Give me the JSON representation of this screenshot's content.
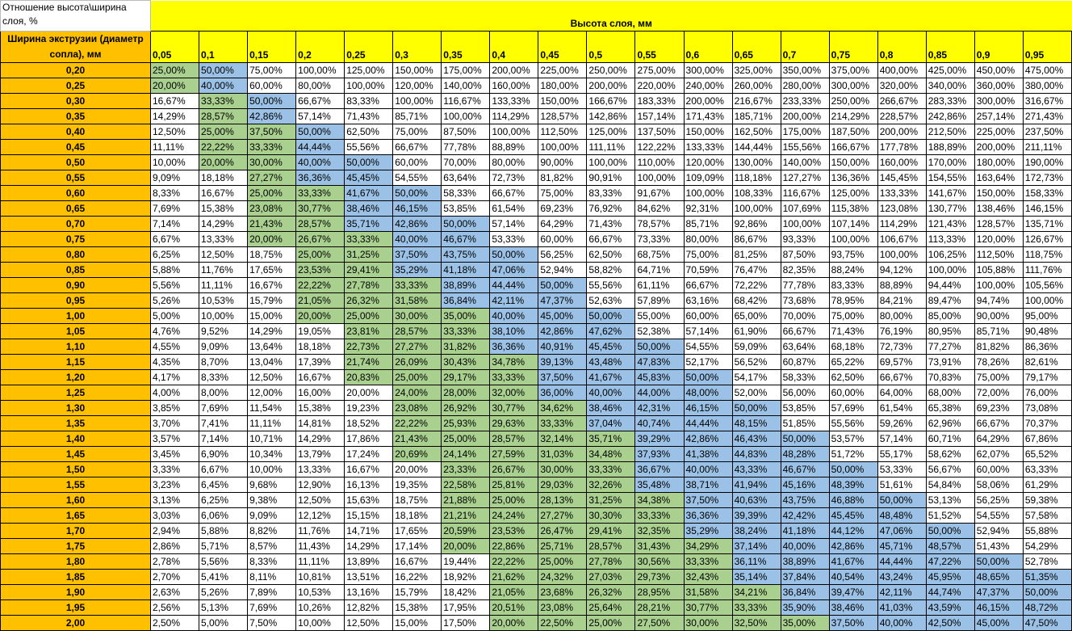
{
  "corner_label": "Отношение высота\\ширина слоя, %",
  "column_group_title": "Высота слоя, мм",
  "row_group_title": "Ширина экструзии (диаметр сопла), мм",
  "colors": {
    "row_header": "#FFC000",
    "column_header": "#FFFF00",
    "green": "#A9D08E",
    "blue": "#9BC2E6"
  },
  "heights": [
    "0,05",
    "0,1",
    "0,15",
    "0,2",
    "0,25",
    "0,3",
    "0,35",
    "0,4",
    "0,45",
    "0,5",
    "0,55",
    "0,6",
    "0,65",
    "0,7",
    "0,75",
    "0,8",
    "0,85",
    "0,9",
    "0,95"
  ],
  "rows": [
    {
      "width": "0,20",
      "green": [
        0,
        0
      ],
      "blue": [
        1,
        1
      ],
      "values": [
        "25,00%",
        "50,00%",
        "75,00%",
        "100,00%",
        "125,00%",
        "150,00%",
        "175,00%",
        "200,00%",
        "225,00%",
        "250,00%",
        "275,00%",
        "300,00%",
        "325,00%",
        "350,00%",
        "375,00%",
        "400,00%",
        "425,00%",
        "450,00%",
        "475,00%"
      ]
    },
    {
      "width": "0,25",
      "green": [
        0,
        0
      ],
      "blue": [
        1,
        1
      ],
      "values": [
        "20,00%",
        "40,00%",
        "60,00%",
        "80,00%",
        "100,00%",
        "120,00%",
        "140,00%",
        "160,00%",
        "180,00%",
        "200,00%",
        "220,00%",
        "240,00%",
        "260,00%",
        "280,00%",
        "300,00%",
        "320,00%",
        "340,00%",
        "360,00%",
        "380,00%"
      ]
    },
    {
      "width": "0,30",
      "green": [
        1,
        1
      ],
      "blue": [
        2,
        2
      ],
      "values": [
        "16,67%",
        "33,33%",
        "50,00%",
        "66,67%",
        "83,33%",
        "100,00%",
        "116,67%",
        "133,33%",
        "150,00%",
        "166,67%",
        "183,33%",
        "200,00%",
        "216,67%",
        "233,33%",
        "250,00%",
        "266,67%",
        "283,33%",
        "300,00%",
        "316,67%"
      ]
    },
    {
      "width": "0,35",
      "green": [
        1,
        1
      ],
      "blue": [
        2,
        2
      ],
      "values": [
        "14,29%",
        "28,57%",
        "42,86%",
        "57,14%",
        "71,43%",
        "85,71%",
        "100,00%",
        "114,29%",
        "128,57%",
        "142,86%",
        "157,14%",
        "171,43%",
        "185,71%",
        "200,00%",
        "214,29%",
        "228,57%",
        "242,86%",
        "257,14%",
        "271,43%"
      ]
    },
    {
      "width": "0,40",
      "green": [
        1,
        2
      ],
      "blue": [
        3,
        3
      ],
      "values": [
        "12,50%",
        "25,00%",
        "37,50%",
        "50,00%",
        "62,50%",
        "75,00%",
        "87,50%",
        "100,00%",
        "112,50%",
        "125,00%",
        "137,50%",
        "150,00%",
        "162,50%",
        "175,00%",
        "187,50%",
        "200,00%",
        "212,50%",
        "225,00%",
        "237,50%"
      ]
    },
    {
      "width": "0,45",
      "green": [
        1,
        2
      ],
      "blue": [
        3,
        3
      ],
      "values": [
        "11,11%",
        "22,22%",
        "33,33%",
        "44,44%",
        "55,56%",
        "66,67%",
        "77,78%",
        "88,89%",
        "100,00%",
        "111,11%",
        "122,22%",
        "133,33%",
        "144,44%",
        "155,56%",
        "166,67%",
        "177,78%",
        "188,89%",
        "200,00%",
        "211,11%"
      ]
    },
    {
      "width": "0,50",
      "green": [
        1,
        2
      ],
      "blue": [
        3,
        4
      ],
      "values": [
        "10,00%",
        "20,00%",
        "30,00%",
        "40,00%",
        "50,00%",
        "60,00%",
        "70,00%",
        "80,00%",
        "90,00%",
        "100,00%",
        "110,00%",
        "120,00%",
        "130,00%",
        "140,00%",
        "150,00%",
        "160,00%",
        "170,00%",
        "180,00%",
        "190,00%"
      ]
    },
    {
      "width": "0,55",
      "green": [
        2,
        2
      ],
      "blue": [
        3,
        4
      ],
      "values": [
        "9,09%",
        "18,18%",
        "27,27%",
        "36,36%",
        "45,45%",
        "54,55%",
        "63,64%",
        "72,73%",
        "81,82%",
        "90,91%",
        "100,00%",
        "109,09%",
        "118,18%",
        "127,27%",
        "136,36%",
        "145,45%",
        "154,55%",
        "163,64%",
        "172,73%"
      ]
    },
    {
      "width": "0,60",
      "green": [
        2,
        3
      ],
      "blue": [
        4,
        5
      ],
      "values": [
        "8,33%",
        "16,67%",
        "25,00%",
        "33,33%",
        "41,67%",
        "50,00%",
        "58,33%",
        "66,67%",
        "75,00%",
        "83,33%",
        "91,67%",
        "100,00%",
        "108,33%",
        "116,67%",
        "125,00%",
        "133,33%",
        "141,67%",
        "150,00%",
        "158,33%"
      ]
    },
    {
      "width": "0,65",
      "green": [
        2,
        3
      ],
      "blue": [
        4,
        5
      ],
      "values": [
        "7,69%",
        "15,38%",
        "23,08%",
        "30,77%",
        "38,46%",
        "46,15%",
        "53,85%",
        "61,54%",
        "69,23%",
        "76,92%",
        "84,62%",
        "92,31%",
        "100,00%",
        "107,69%",
        "115,38%",
        "123,08%",
        "130,77%",
        "138,46%",
        "146,15%"
      ]
    },
    {
      "width": "0,70",
      "green": [
        2,
        3
      ],
      "blue": [
        4,
        6
      ],
      "values": [
        "7,14%",
        "14,29%",
        "21,43%",
        "28,57%",
        "35,71%",
        "42,86%",
        "50,00%",
        "57,14%",
        "64,29%",
        "71,43%",
        "78,57%",
        "85,71%",
        "92,86%",
        "100,00%",
        "107,14%",
        "114,29%",
        "121,43%",
        "128,57%",
        "135,71%"
      ]
    },
    {
      "width": "0,75",
      "green": [
        2,
        4
      ],
      "blue": [
        5,
        6
      ],
      "values": [
        "6,67%",
        "13,33%",
        "20,00%",
        "26,67%",
        "33,33%",
        "40,00%",
        "46,67%",
        "53,33%",
        "60,00%",
        "66,67%",
        "73,33%",
        "80,00%",
        "86,67%",
        "93,33%",
        "100,00%",
        "106,67%",
        "113,33%",
        "120,00%",
        "126,67%"
      ]
    },
    {
      "width": "0,80",
      "green": [
        3,
        4
      ],
      "blue": [
        5,
        7
      ],
      "values": [
        "6,25%",
        "12,50%",
        "18,75%",
        "25,00%",
        "31,25%",
        "37,50%",
        "43,75%",
        "50,00%",
        "56,25%",
        "62,50%",
        "68,75%",
        "75,00%",
        "81,25%",
        "87,50%",
        "93,75%",
        "100,00%",
        "106,25%",
        "112,50%",
        "118,75%"
      ]
    },
    {
      "width": "0,85",
      "green": [
        3,
        4
      ],
      "blue": [
        5,
        7
      ],
      "values": [
        "5,88%",
        "11,76%",
        "17,65%",
        "23,53%",
        "29,41%",
        "35,29%",
        "41,18%",
        "47,06%",
        "52,94%",
        "58,82%",
        "64,71%",
        "70,59%",
        "76,47%",
        "82,35%",
        "88,24%",
        "94,12%",
        "100,00%",
        "105,88%",
        "111,76%"
      ]
    },
    {
      "width": "0,90",
      "green": [
        3,
        5
      ],
      "blue": [
        6,
        8
      ],
      "values": [
        "5,56%",
        "11,11%",
        "16,67%",
        "22,22%",
        "27,78%",
        "33,33%",
        "38,89%",
        "44,44%",
        "50,00%",
        "55,56%",
        "61,11%",
        "66,67%",
        "72,22%",
        "77,78%",
        "83,33%",
        "88,89%",
        "94,44%",
        "100,00%",
        "105,56%"
      ]
    },
    {
      "width": "0,95",
      "green": [
        3,
        5
      ],
      "blue": [
        6,
        8
      ],
      "values": [
        "5,26%",
        "10,53%",
        "15,79%",
        "21,05%",
        "26,32%",
        "31,58%",
        "36,84%",
        "42,11%",
        "47,37%",
        "52,63%",
        "57,89%",
        "63,16%",
        "68,42%",
        "73,68%",
        "78,95%",
        "84,21%",
        "89,47%",
        "94,74%",
        "100,00%"
      ]
    },
    {
      "width": "1,00",
      "green": [
        3,
        6
      ],
      "blue": [
        7,
        9
      ],
      "values": [
        "5,00%",
        "10,00%",
        "15,00%",
        "20,00%",
        "25,00%",
        "30,00%",
        "35,00%",
        "40,00%",
        "45,00%",
        "50,00%",
        "55,00%",
        "60,00%",
        "65,00%",
        "70,00%",
        "75,00%",
        "80,00%",
        "85,00%",
        "90,00%",
        "95,00%"
      ]
    },
    {
      "width": "1,05",
      "green": [
        4,
        6
      ],
      "blue": [
        7,
        9
      ],
      "values": [
        "4,76%",
        "9,52%",
        "14,29%",
        "19,05%",
        "23,81%",
        "28,57%",
        "33,33%",
        "38,10%",
        "42,86%",
        "47,62%",
        "52,38%",
        "57,14%",
        "61,90%",
        "66,67%",
        "71,43%",
        "76,19%",
        "80,95%",
        "85,71%",
        "90,48%"
      ]
    },
    {
      "width": "1,10",
      "green": [
        4,
        6
      ],
      "blue": [
        7,
        10
      ],
      "values": [
        "4,55%",
        "9,09%",
        "13,64%",
        "18,18%",
        "22,73%",
        "27,27%",
        "31,82%",
        "36,36%",
        "40,91%",
        "45,45%",
        "50,00%",
        "54,55%",
        "59,09%",
        "63,64%",
        "68,18%",
        "72,73%",
        "77,27%",
        "81,82%",
        "86,36%"
      ]
    },
    {
      "width": "1,15",
      "green": [
        4,
        7
      ],
      "blue": [
        8,
        10
      ],
      "values": [
        "4,35%",
        "8,70%",
        "13,04%",
        "17,39%",
        "21,74%",
        "26,09%",
        "30,43%",
        "34,78%",
        "39,13%",
        "43,48%",
        "47,83%",
        "52,17%",
        "56,52%",
        "60,87%",
        "65,22%",
        "69,57%",
        "73,91%",
        "78,26%",
        "82,61%"
      ]
    },
    {
      "width": "1,20",
      "green": [
        4,
        7
      ],
      "blue": [
        8,
        11
      ],
      "values": [
        "4,17%",
        "8,33%",
        "12,50%",
        "16,67%",
        "20,83%",
        "25,00%",
        "29,17%",
        "33,33%",
        "37,50%",
        "41,67%",
        "45,83%",
        "50,00%",
        "54,17%",
        "58,33%",
        "62,50%",
        "66,67%",
        "70,83%",
        "75,00%",
        "79,17%"
      ]
    },
    {
      "width": "1,25",
      "green": [
        5,
        7
      ],
      "blue": [
        8,
        11
      ],
      "values": [
        "4,00%",
        "8,00%",
        "12,00%",
        "16,00%",
        "20,00%",
        "24,00%",
        "28,00%",
        "32,00%",
        "36,00%",
        "40,00%",
        "44,00%",
        "48,00%",
        "52,00%",
        "56,00%",
        "60,00%",
        "64,00%",
        "68,00%",
        "72,00%",
        "76,00%"
      ]
    },
    {
      "width": "1,30",
      "green": [
        5,
        8
      ],
      "blue": [
        9,
        12
      ],
      "values": [
        "3,85%",
        "7,69%",
        "11,54%",
        "15,38%",
        "19,23%",
        "23,08%",
        "26,92%",
        "30,77%",
        "34,62%",
        "38,46%",
        "42,31%",
        "46,15%",
        "50,00%",
        "53,85%",
        "57,69%",
        "61,54%",
        "65,38%",
        "69,23%",
        "73,08%"
      ]
    },
    {
      "width": "1,35",
      "green": [
        5,
        8
      ],
      "blue": [
        9,
        12
      ],
      "values": [
        "3,70%",
        "7,41%",
        "11,11%",
        "14,81%",
        "18,52%",
        "22,22%",
        "25,93%",
        "29,63%",
        "33,33%",
        "37,04%",
        "40,74%",
        "44,44%",
        "48,15%",
        "51,85%",
        "55,56%",
        "59,26%",
        "62,96%",
        "66,67%",
        "70,37%"
      ]
    },
    {
      "width": "1,40",
      "green": [
        5,
        9
      ],
      "blue": [
        10,
        13
      ],
      "values": [
        "3,57%",
        "7,14%",
        "10,71%",
        "14,29%",
        "17,86%",
        "21,43%",
        "25,00%",
        "28,57%",
        "32,14%",
        "35,71%",
        "39,29%",
        "42,86%",
        "46,43%",
        "50,00%",
        "53,57%",
        "57,14%",
        "60,71%",
        "64,29%",
        "67,86%"
      ]
    },
    {
      "width": "1,45",
      "green": [
        5,
        9
      ],
      "blue": [
        10,
        13
      ],
      "values": [
        "3,45%",
        "6,90%",
        "10,34%",
        "13,79%",
        "17,24%",
        "20,69%",
        "24,14%",
        "27,59%",
        "31,03%",
        "34,48%",
        "37,93%",
        "41,38%",
        "44,83%",
        "48,28%",
        "51,72%",
        "55,17%",
        "58,62%",
        "62,07%",
        "65,52%"
      ]
    },
    {
      "width": "1,50",
      "green": [
        6,
        9
      ],
      "blue": [
        10,
        14
      ],
      "values": [
        "3,33%",
        "6,67%",
        "10,00%",
        "13,33%",
        "16,67%",
        "20,00%",
        "23,33%",
        "26,67%",
        "30,00%",
        "33,33%",
        "36,67%",
        "40,00%",
        "43,33%",
        "46,67%",
        "50,00%",
        "53,33%",
        "56,67%",
        "60,00%",
        "63,33%"
      ]
    },
    {
      "width": "1,55",
      "green": [
        6,
        9
      ],
      "blue": [
        10,
        14
      ],
      "values": [
        "3,23%",
        "6,45%",
        "9,68%",
        "12,90%",
        "16,13%",
        "19,35%",
        "22,58%",
        "25,81%",
        "29,03%",
        "32,26%",
        "35,48%",
        "38,71%",
        "41,94%",
        "45,16%",
        "48,39%",
        "51,61%",
        "54,84%",
        "58,06%",
        "61,29%"
      ]
    },
    {
      "width": "1,60",
      "green": [
        6,
        10
      ],
      "blue": [
        11,
        15
      ],
      "values": [
        "3,13%",
        "6,25%",
        "9,38%",
        "12,50%",
        "15,63%",
        "18,75%",
        "21,88%",
        "25,00%",
        "28,13%",
        "31,25%",
        "34,38%",
        "37,50%",
        "40,63%",
        "43,75%",
        "46,88%",
        "50,00%",
        "53,13%",
        "56,25%",
        "59,38%"
      ]
    },
    {
      "width": "1,65",
      "green": [
        6,
        10
      ],
      "blue": [
        11,
        15
      ],
      "values": [
        "3,03%",
        "6,06%",
        "9,09%",
        "12,12%",
        "15,15%",
        "18,18%",
        "21,21%",
        "24,24%",
        "27,27%",
        "30,30%",
        "33,33%",
        "36,36%",
        "39,39%",
        "42,42%",
        "45,45%",
        "48,48%",
        "51,52%",
        "54,55%",
        "57,58%"
      ]
    },
    {
      "width": "1,70",
      "green": [
        6,
        10
      ],
      "blue": [
        11,
        16
      ],
      "values": [
        "2,94%",
        "5,88%",
        "8,82%",
        "11,76%",
        "14,71%",
        "17,65%",
        "20,59%",
        "23,53%",
        "26,47%",
        "29,41%",
        "32,35%",
        "35,29%",
        "38,24%",
        "41,18%",
        "44,12%",
        "47,06%",
        "50,00%",
        "52,94%",
        "55,88%"
      ]
    },
    {
      "width": "1,75",
      "green": [
        6,
        11
      ],
      "blue": [
        12,
        16
      ],
      "values": [
        "2,86%",
        "5,71%",
        "8,57%",
        "11,43%",
        "14,29%",
        "17,14%",
        "20,00%",
        "22,86%",
        "25,71%",
        "28,57%",
        "31,43%",
        "34,29%",
        "37,14%",
        "40,00%",
        "42,86%",
        "45,71%",
        "48,57%",
        "51,43%",
        "54,29%"
      ]
    },
    {
      "width": "1,80",
      "green": [
        7,
        11
      ],
      "blue": [
        12,
        17
      ],
      "values": [
        "2,78%",
        "5,56%",
        "8,33%",
        "11,11%",
        "13,89%",
        "16,67%",
        "19,44%",
        "22,22%",
        "25,00%",
        "27,78%",
        "30,56%",
        "33,33%",
        "36,11%",
        "38,89%",
        "41,67%",
        "44,44%",
        "47,22%",
        "50,00%",
        "52,78%"
      ]
    },
    {
      "width": "1,85",
      "green": [
        7,
        11
      ],
      "blue": [
        12,
        18
      ],
      "values": [
        "2,70%",
        "5,41%",
        "8,11%",
        "10,81%",
        "13,51%",
        "16,22%",
        "18,92%",
        "21,62%",
        "24,32%",
        "27,03%",
        "29,73%",
        "32,43%",
        "35,14%",
        "37,84%",
        "40,54%",
        "43,24%",
        "45,95%",
        "48,65%",
        "51,35%"
      ]
    },
    {
      "width": "1,90",
      "green": [
        7,
        12
      ],
      "blue": [
        13,
        18
      ],
      "values": [
        "2,63%",
        "5,26%",
        "7,89%",
        "10,53%",
        "13,16%",
        "15,79%",
        "18,42%",
        "21,05%",
        "23,68%",
        "26,32%",
        "28,95%",
        "31,58%",
        "34,21%",
        "36,84%",
        "39,47%",
        "42,11%",
        "44,74%",
        "47,37%",
        "50,00%"
      ]
    },
    {
      "width": "1,95",
      "green": [
        7,
        12
      ],
      "blue": [
        13,
        18
      ],
      "values": [
        "2,56%",
        "5,13%",
        "7,69%",
        "10,26%",
        "12,82%",
        "15,38%",
        "17,95%",
        "20,51%",
        "23,08%",
        "25,64%",
        "28,21%",
        "30,77%",
        "33,33%",
        "35,90%",
        "38,46%",
        "41,03%",
        "43,59%",
        "46,15%",
        "48,72%"
      ]
    },
    {
      "width": "2,00",
      "green": [
        7,
        13
      ],
      "blue": [
        14,
        18
      ],
      "values": [
        "2,50%",
        "5,00%",
        "7,50%",
        "10,00%",
        "12,50%",
        "15,00%",
        "17,50%",
        "20,00%",
        "22,50%",
        "25,00%",
        "27,50%",
        "30,00%",
        "32,50%",
        "35,00%",
        "37,50%",
        "40,00%",
        "42,50%",
        "45,00%",
        "47,50%"
      ]
    }
  ]
}
